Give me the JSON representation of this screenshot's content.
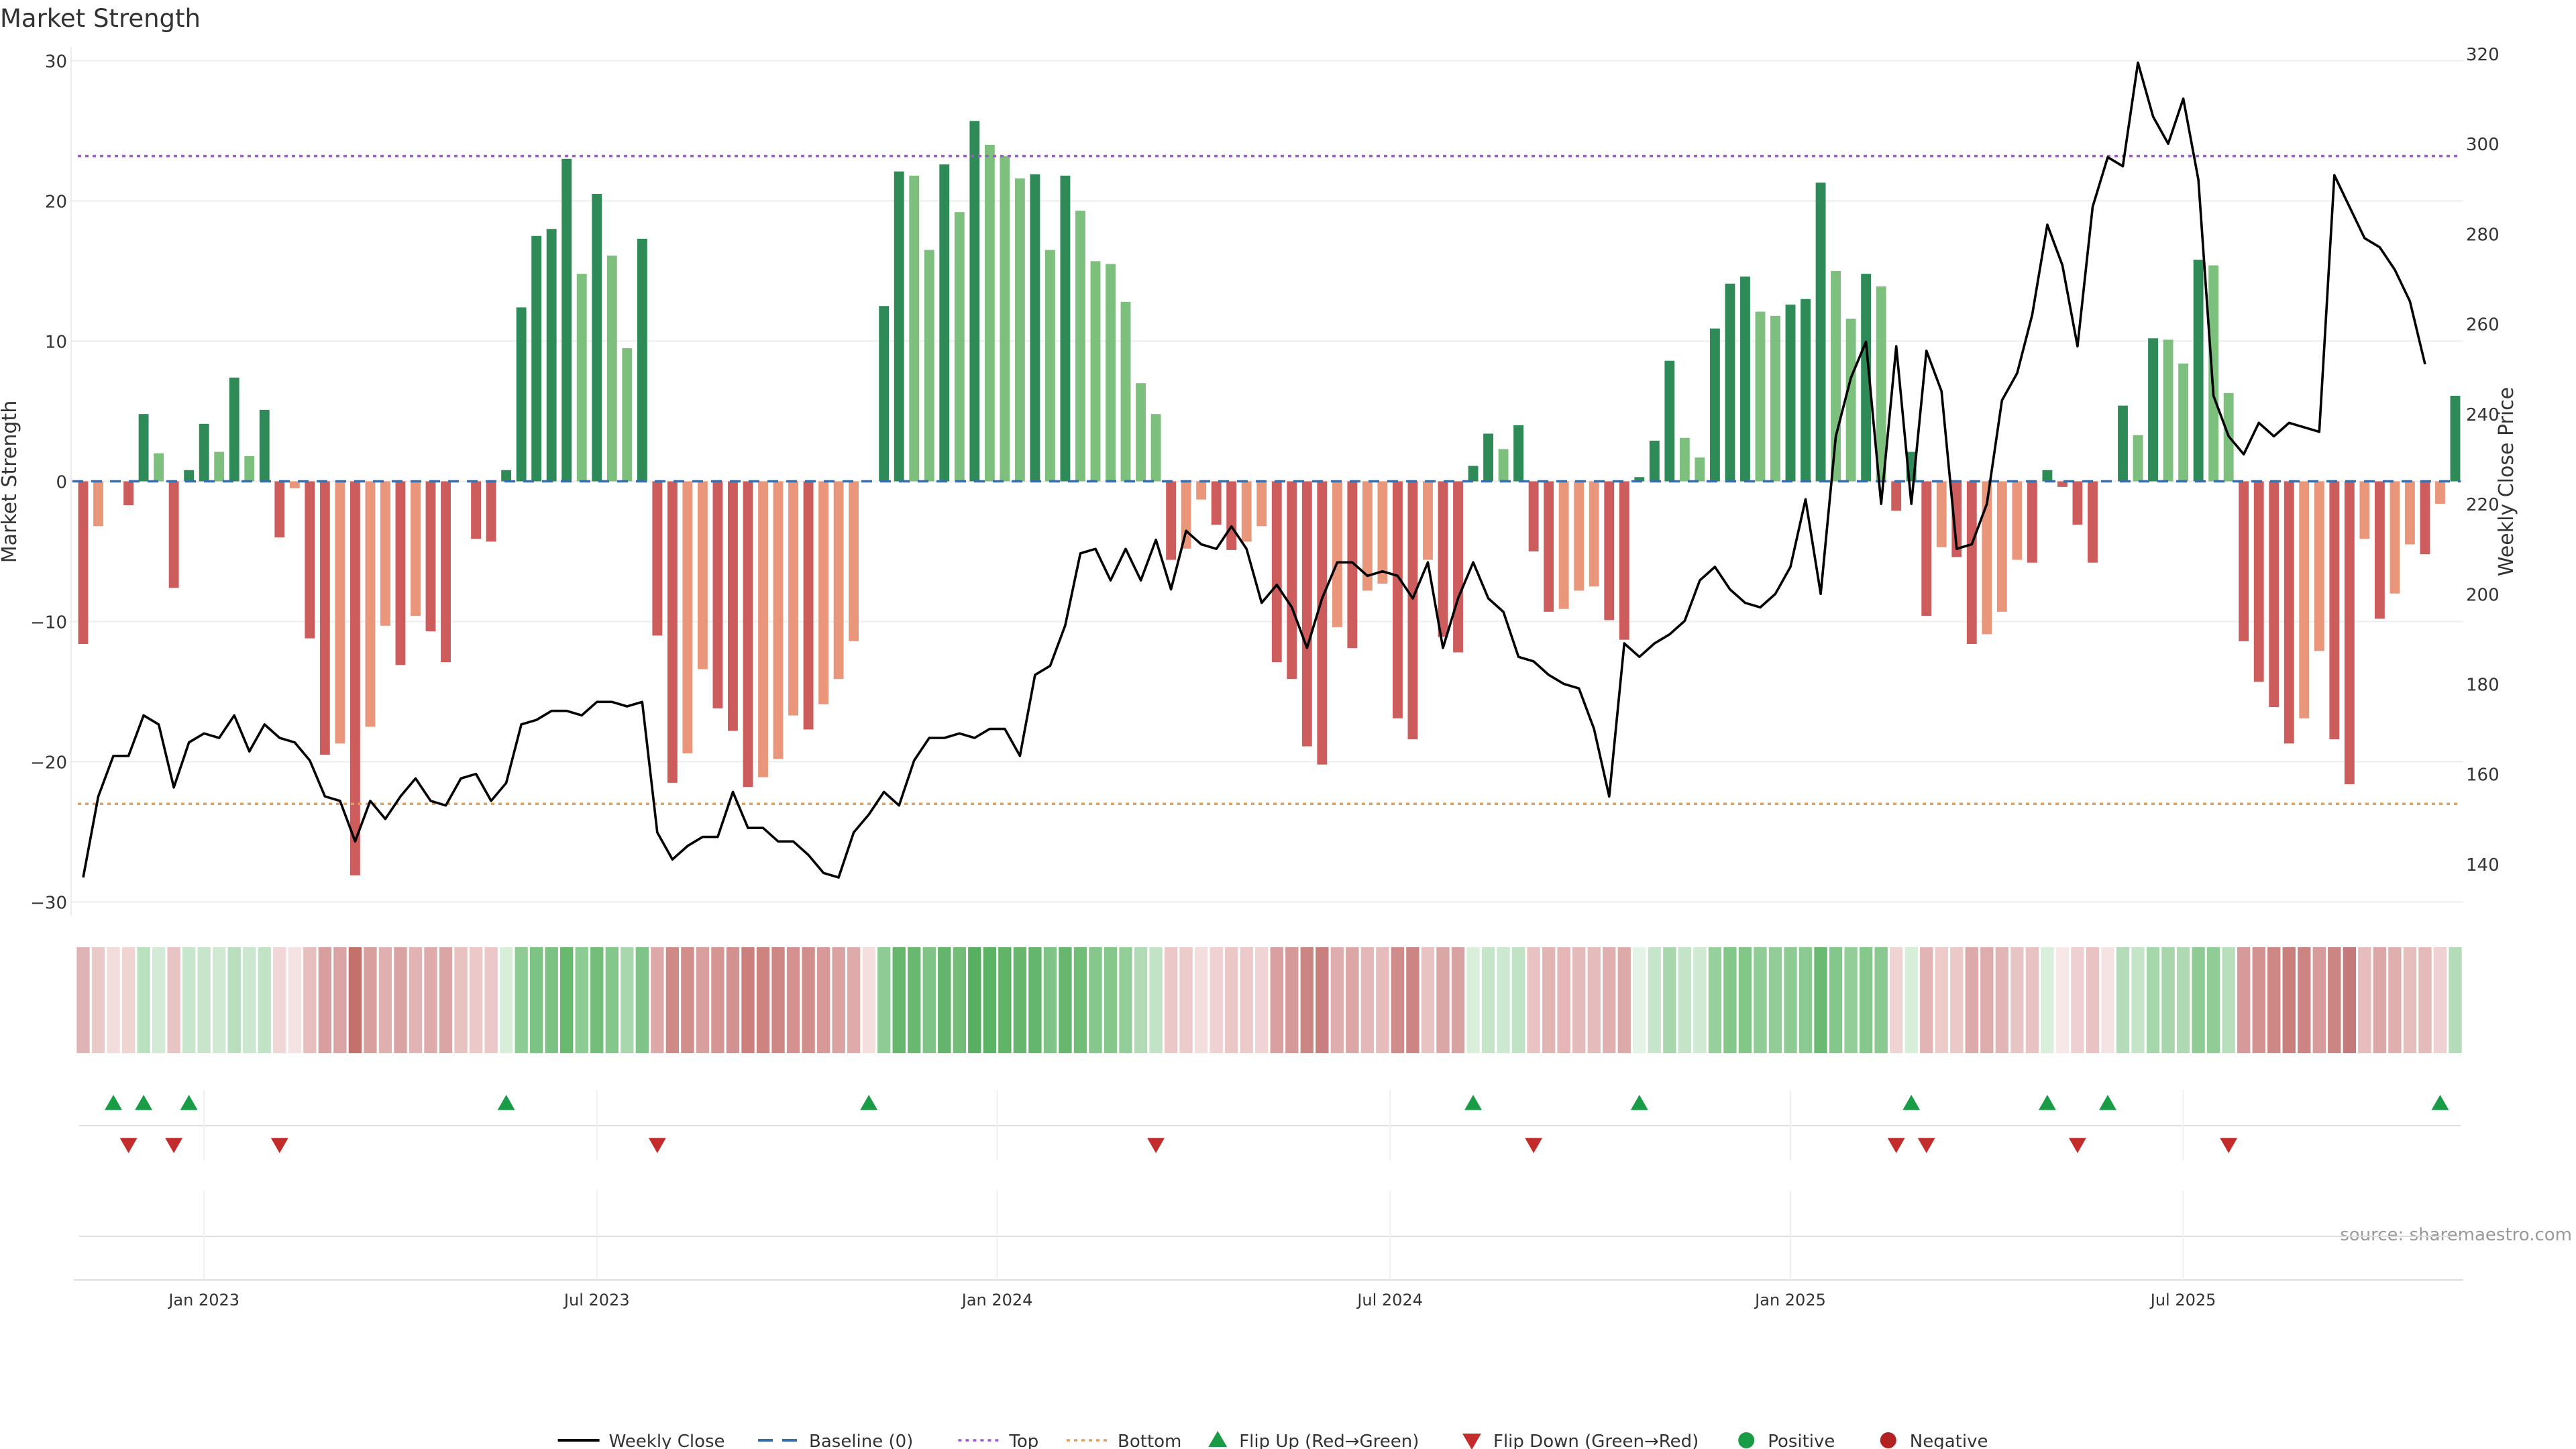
{
  "chart_data": {
    "type": "bar",
    "title": "Market Strength",
    "ylabel_left": "Market Strength",
    "ylabel_right": "Weekly Close Price",
    "ylim_left": [
      -30.5,
      30.5
    ],
    "yticks_left": [
      30,
      20,
      10,
      0,
      -10,
      -20,
      -30
    ],
    "ylim_right": [
      130,
      320
    ],
    "yticks_right": [
      320,
      300,
      280,
      260,
      240,
      220,
      200,
      180,
      160,
      140
    ],
    "top_level": 23.2,
    "bottom_level": -23.0,
    "x_axis_ticks": [
      "Jan 2023",
      "Jul 2023",
      "Jan 2024",
      "Jul 2024",
      "Jan 2025",
      "Jul 2025"
    ],
    "x_axis_tick_weeks": [
      8,
      34,
      60.5,
      86.5,
      113,
      139
    ],
    "strength": [
      -11.6,
      -3.2,
      0,
      -1.7,
      4.8,
      2,
      -7.6,
      0.8,
      4.1,
      2.1,
      7.4,
      1.8,
      5.1,
      -4,
      -0.5,
      -11.2,
      -19.5,
      -18.7,
      -28.1,
      -17.5,
      -10.3,
      -13.1,
      -9.6,
      -10.7,
      -12.9,
      0,
      -4.1,
      -4.3,
      0.8,
      12.4,
      17.5,
      18,
      23,
      14.8,
      20.5,
      16.1,
      9.5,
      17.3,
      -11,
      -21.5,
      -19.4,
      -13.4,
      -16.2,
      -17.8,
      -21.8,
      -21.1,
      -19.8,
      -16.7,
      -17.7,
      -15.9,
      -14.1,
      -11.4,
      0,
      12.5,
      22.1,
      21.8,
      16.5,
      22.6,
      19.2,
      25.7,
      24,
      23.2,
      21.6,
      21.9,
      16.5,
      21.8,
      19.3,
      15.7,
      15.5,
      12.8,
      7,
      4.8,
      -5.6,
      -4.8,
      -1.3,
      -3.1,
      -4.9,
      -4.3,
      -3.2,
      -12.9,
      -14.1,
      -18.9,
      -20.2,
      -10.4,
      -11.9,
      -7.8,
      -7.3,
      -16.9,
      -18.4,
      -5.6,
      -11.1,
      -12.2,
      1.1,
      3.4,
      2.3,
      4,
      -5,
      -9.3,
      -9.1,
      -7.8,
      -7.5,
      -9.9,
      -11.3,
      0.3,
      2.9,
      8.6,
      3.1,
      1.7,
      10.9,
      14.1,
      14.6,
      12.1,
      11.8,
      12.6,
      13,
      21.3,
      15,
      11.6,
      14.8,
      13.9,
      -2.1,
      2.1,
      -9.6,
      -4.7,
      -5.4,
      -11.6,
      -10.9,
      -9.3,
      -5.6,
      -5.8,
      0.8,
      -0.4,
      -3.1,
      -5.8,
      0,
      5.4,
      3.3,
      10.2,
      10.1,
      8.4,
      15.8,
      15.4,
      6.3,
      -11.4,
      -14.3,
      -16.1,
      -18.7,
      -16.9,
      -12.1,
      -18.4,
      -21.6,
      -4.1,
      -9.8,
      -8,
      -4.5,
      -5.2,
      -1.6,
      6.1
    ],
    "price": [
      137,
      155,
      164,
      164,
      173,
      171,
      157,
      167,
      169,
      168,
      173,
      165,
      171,
      168,
      167,
      163,
      155,
      154,
      145,
      154,
      150,
      155,
      159,
      154,
      153,
      159,
      160,
      154,
      158,
      171,
      172,
      174,
      174,
      173,
      176,
      176,
      175,
      176,
      147,
      141,
      144,
      146,
      146,
      156,
      148,
      148,
      145,
      145,
      142,
      138,
      137,
      147,
      151,
      156,
      153,
      163,
      168,
      168,
      169,
      168,
      170,
      170,
      164,
      182,
      184,
      193,
      209,
      210,
      203,
      210,
      203,
      212,
      201,
      214,
      211,
      210,
      215,
      210,
      198,
      202,
      197,
      188,
      199,
      207,
      207,
      204,
      205,
      204,
      199,
      207,
      188,
      199,
      207,
      199,
      196,
      186,
      185,
      182,
      180,
      179,
      170,
      155,
      189,
      186,
      189,
      191,
      194,
      203,
      206,
      201,
      198,
      197,
      200,
      206,
      221,
      200,
      235,
      248,
      256,
      220,
      255,
      220,
      254,
      245,
      210,
      211,
      220,
      243,
      249,
      262,
      282,
      273,
      255,
      286,
      297,
      295,
      318,
      306,
      300,
      310,
      292,
      244,
      235,
      231,
      238,
      235,
      238,
      237,
      236,
      293,
      286,
      279,
      277,
      272,
      265,
      251
    ],
    "band_colors": [
      "#e0b4b4",
      "#eac9c9",
      "#f2dcdc",
      "#f0d4d4",
      "#b9e0bf",
      "#d2ead6",
      "#e9c4c4",
      "#c8e6cc",
      "#c7e5cb",
      "#cfe9d3",
      "#b9dfbe",
      "#cbe7cf",
      "#c0e3c5",
      "#f0d6d6",
      "#f5e2e2",
      "#e6bebe",
      "#d99e9e",
      "#dba4a4",
      "#c4706b",
      "#d99e9e",
      "#e0afaf",
      "#d9a3a3",
      "#e2b3b3",
      "#deaaaa",
      "#dba5a5",
      "#e8c1c1",
      "#ecc8c8",
      "#ebc7c7",
      "#d7eed9",
      "#8fcc95",
      "#7dc384",
      "#7bc283",
      "#68b86f",
      "#8ccb92",
      "#72be79",
      "#84c78a",
      "#a8d7ad",
      "#7fc486",
      "#dda8a8",
      "#cf8a87",
      "#d28e8b",
      "#d99f9f",
      "#d59593",
      "#d29190",
      "#cb807d",
      "#cd8480",
      "#ce8784",
      "#d49190",
      "#d28e8b",
      "#d89a99",
      "#dba2a2",
      "#dfaaaa",
      "#f5dede",
      "#8fcc95",
      "#66b76d",
      "#68b86f",
      "#7fc486",
      "#62b56a",
      "#72be79",
      "#57b061",
      "#5db365",
      "#60b468",
      "#66b76d",
      "#64b66c",
      "#7fc486",
      "#66b76d",
      "#72be79",
      "#86c88c",
      "#86c88c",
      "#93ce99",
      "#b1dbb5",
      "#c2e3c6",
      "#ebc7c7",
      "#edcbcb",
      "#f3dddd",
      "#efd1d1",
      "#ebc7c7",
      "#edcaca",
      "#f0d3d3",
      "#d8a0a0",
      "#d59999",
      "#cb8583",
      "#c7807d",
      "#dfadad",
      "#dba6a6",
      "#e4b8b8",
      "#e5bbbb",
      "#cf8c8a",
      "#cc8583",
      "#e9c3c3",
      "#dba6a6",
      "#d9a2a2",
      "#d9eedb",
      "#c4e5c8",
      "#cde8d1",
      "#c1e3c5",
      "#e9c3c3",
      "#e3b4b4",
      "#e4b6b6",
      "#e5baba",
      "#e6bbbb",
      "#e0afaf",
      "#ddaaaa",
      "#e3f3e5",
      "#c6e5ca",
      "#a8d7ad",
      "#c3e4c7",
      "#cfe9d3",
      "#96d09b",
      "#84c78a",
      "#82c688",
      "#90cd96",
      "#92cd98",
      "#8ecb94",
      "#8bca91",
      "#6bba72",
      "#84c78a",
      "#93ce99",
      "#86c88c",
      "#89c98f",
      "#f0d4d4",
      "#d7eed9",
      "#e2b4b4",
      "#edcbcb",
      "#ecc9c9",
      "#dcaaaa",
      "#ddacac",
      "#e2b5b5",
      "#e9c4c4",
      "#e9c3c3",
      "#d9eedb",
      "#f7e7e7",
      "#efd0d0",
      "#e9c3c3",
      "#f5e2e2",
      "#b3dcb7",
      "#c5e5c9",
      "#a6d6ab",
      "#a7d6ac",
      "#aed9b2",
      "#8fcc95",
      "#90cd96",
      "#b7dfbb",
      "#d59a99",
      "#d39190",
      "#cd8784",
      "#c9807d",
      "#cc8482",
      "#d69b9a",
      "#cb8583",
      "#c5797a",
      "#e6bcbc",
      "#dba7a7",
      "#dfaeae",
      "#e7bebe",
      "#e5baba",
      "#efd1d1",
      "#b4dcb8"
    ],
    "flip_up_weeks": [
      2,
      4,
      7,
      28,
      52,
      92,
      103,
      121,
      130,
      134,
      156
    ],
    "flip_down_weeks": [
      3,
      6,
      13,
      38,
      71,
      96,
      120,
      122,
      132,
      142
    ],
    "legend": [
      {
        "label": "Weekly Close",
        "symbol": "line",
        "color": "#000000"
      },
      {
        "label": "Baseline (0)",
        "symbol": "dash",
        "color": "#3b6ea8"
      },
      {
        "label": "Top",
        "symbol": "dot",
        "color": "#9b59d6"
      },
      {
        "label": "Bottom",
        "symbol": "dot",
        "color": "#e0a060"
      },
      {
        "label": "Flip Up (Red→Green)",
        "symbol": "triangle-up",
        "color": "#1a9c47"
      },
      {
        "label": "Flip Down (Green→Red)",
        "symbol": "triangle-down",
        "color": "#c42b2b"
      },
      {
        "label": "Positive",
        "symbol": "circle",
        "color": "#1a9c47"
      },
      {
        "label": "Negative",
        "symbol": "circle",
        "color": "#b22222"
      }
    ],
    "colors": {
      "pos_strong": "#2e8b57",
      "pos_light": "#7dbf7d",
      "neg_strong": "#cd5c5c",
      "neg_light": "#e9967a",
      "flip_up": "#1a9c47",
      "flip_down": "#c42b2b",
      "price_line": "#000000",
      "baseline": "#3b6ea8",
      "top_line": "#9b59d6",
      "bottom_line": "#e0a060"
    },
    "source": "source: sharemaestro.com"
  }
}
